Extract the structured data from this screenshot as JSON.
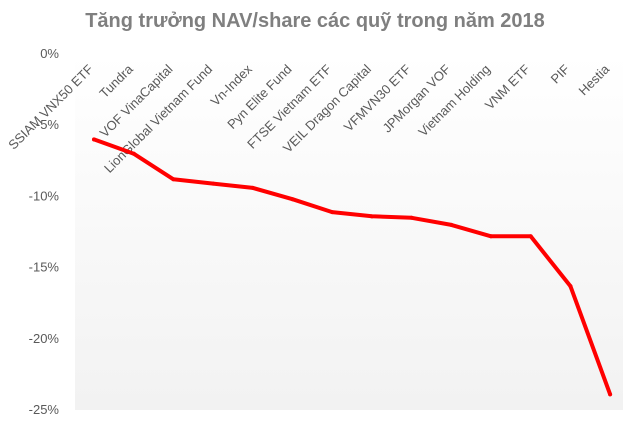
{
  "chart_data": {
    "type": "line",
    "title": "Tăng trưởng NAV/share các quỹ trong năm 2018",
    "xlabel": "",
    "ylabel": "",
    "ylim": [
      -25,
      0
    ],
    "yticks": [
      {
        "value": 0,
        "label": "0%"
      },
      {
        "value": -5,
        "label": "-5%"
      },
      {
        "value": -10,
        "label": "-10%"
      },
      {
        "value": -15,
        "label": "-15%"
      },
      {
        "value": -20,
        "label": "-20%"
      },
      {
        "value": -25,
        "label": "-25%"
      }
    ],
    "categories": [
      "SSIAM VNX50 ETF",
      "Tundra",
      "VOF VinaCapital",
      "LionGlobal Vietnam Fund",
      "Vn-Index",
      "Pyn Elite Fund",
      "FTSE Vietnam ETF",
      "VEIL Dragon Capital",
      "VFMVN30 ETF",
      "JPMorgan VOF",
      "Vietnam Holding",
      "VNM ETF",
      "PIF",
      "Hestia"
    ],
    "values": [
      -6.0,
      -7.0,
      -8.8,
      -9.1,
      -9.4,
      -10.2,
      -11.1,
      -11.4,
      -11.5,
      -12.0,
      -12.8,
      -12.8,
      -16.3,
      -23.9
    ],
    "line_color": "#ff0000",
    "grid": false,
    "legend": "none",
    "background_gradient": [
      "#ffffff",
      "#f2f2f2"
    ]
  }
}
